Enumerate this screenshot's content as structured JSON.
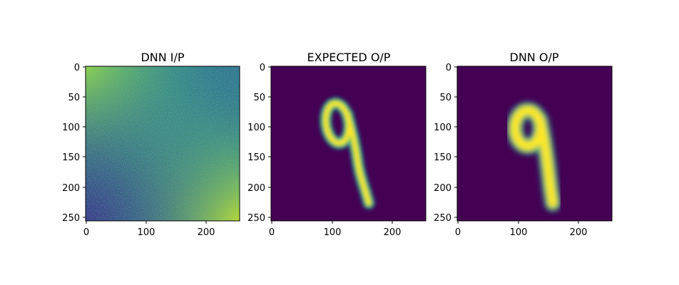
{
  "figure": {
    "panels": [
      {
        "key": "input",
        "title": "DNN I/P",
        "x_ticks": [
          "0",
          "100",
          "200"
        ],
        "y_ticks": [
          "0",
          "50",
          "100",
          "150",
          "200",
          "250"
        ]
      },
      {
        "key": "expected",
        "title": "EXPECTED O/P",
        "x_ticks": [
          "0",
          "100",
          "200"
        ],
        "y_ticks": [
          "0",
          "50",
          "100",
          "150",
          "200",
          "250"
        ]
      },
      {
        "key": "output",
        "title": "DNN O/P",
        "x_ticks": [
          "0",
          "100",
          "200"
        ],
        "y_ticks": [
          "0",
          "50",
          "100",
          "150",
          "200",
          "250"
        ]
      }
    ],
    "colormap": {
      "name": "viridis",
      "background": "#440154",
      "mid": "#21918c",
      "bright": "#fde725"
    },
    "image_size": [
      256,
      256
    ],
    "subject": "handwritten digit 9"
  }
}
